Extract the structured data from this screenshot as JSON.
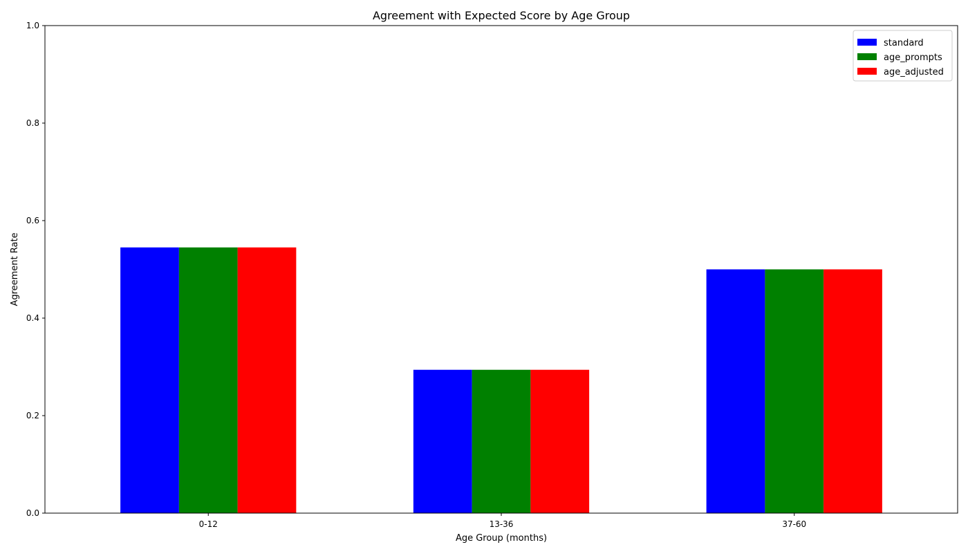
{
  "chart_data": {
    "type": "bar",
    "title": "Agreement with Expected Score by Age Group",
    "xlabel": "Age Group (months)",
    "ylabel": "Agreement Rate",
    "categories": [
      "0-12",
      "13-36",
      "37-60"
    ],
    "series": [
      {
        "name": "standard",
        "color": "#0000ff",
        "values": [
          0.545,
          0.294,
          0.5
        ]
      },
      {
        "name": "age_prompts",
        "color": "#008000",
        "values": [
          0.545,
          0.294,
          0.5
        ]
      },
      {
        "name": "age_adjusted",
        "color": "#ff0000",
        "values": [
          0.545,
          0.294,
          0.5
        ]
      }
    ],
    "ylim": [
      0,
      1.0
    ],
    "yticks": [
      "0.0",
      "0.2",
      "0.4",
      "0.6",
      "0.8",
      "1.0"
    ],
    "grid": false,
    "legend_position": "top-right"
  }
}
